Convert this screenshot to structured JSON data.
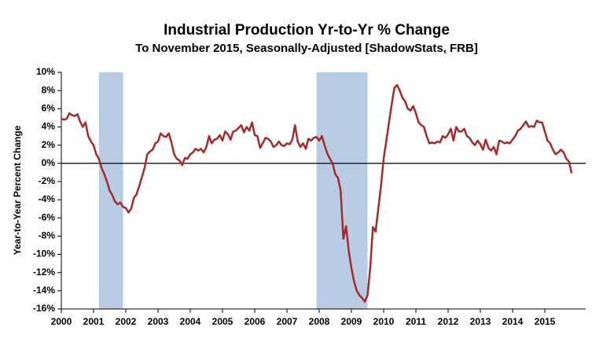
{
  "chart_data": {
    "type": "line",
    "title": "Industrial Production Yr-to-Yr %  Change",
    "subtitle": "To November 2015, Seasonally-Adjusted [ShadowStats, FRB]",
    "y_label": "Year-to-Year Percent Change",
    "categories": [
      "2000",
      null,
      null,
      null,
      null,
      null,
      null,
      null,
      null,
      null,
      null,
      null,
      "2001",
      null,
      null,
      null,
      null,
      null,
      null,
      null,
      null,
      null,
      null,
      null,
      "2002",
      null,
      null,
      null,
      null,
      null,
      null,
      null,
      null,
      null,
      null,
      null,
      "2003",
      null,
      null,
      null,
      null,
      null,
      null,
      null,
      null,
      null,
      null,
      null,
      "2004",
      null,
      null,
      null,
      null,
      null,
      null,
      null,
      null,
      null,
      null,
      null,
      "2005",
      null,
      null,
      null,
      null,
      null,
      null,
      null,
      null,
      null,
      null,
      null,
      "2006",
      null,
      null,
      null,
      null,
      null,
      null,
      null,
      null,
      null,
      null,
      null,
      "2007",
      null,
      null,
      null,
      null,
      null,
      null,
      null,
      null,
      null,
      null,
      null,
      "2008",
      null,
      null,
      null,
      null,
      null,
      null,
      null,
      null,
      null,
      null,
      null,
      "2009",
      null,
      null,
      null,
      null,
      null,
      null,
      null,
      null,
      null,
      null,
      null,
      "2010",
      null,
      null,
      null,
      null,
      null,
      null,
      null,
      null,
      null,
      null,
      null,
      "2011",
      null,
      null,
      null,
      null,
      null,
      null,
      null,
      null,
      null,
      null,
      null,
      "2012",
      null,
      null,
      null,
      null,
      null,
      null,
      null,
      null,
      null,
      null,
      null,
      "2013",
      null,
      null,
      null,
      null,
      null,
      null,
      null,
      null,
      null,
      null,
      null,
      "2014",
      null,
      null,
      null,
      null,
      null,
      null,
      null,
      null,
      null,
      null,
      null,
      "2015",
      null,
      null,
      null,
      null,
      null,
      null,
      null,
      null,
      null,
      null
    ],
    "series": [
      {
        "name": "Industrial Production",
        "color": "#a52a2a",
        "values": [
          4.9,
          4.8,
          4.9,
          5.5,
          5.3,
          5.2,
          5.4,
          4.6,
          4.0,
          4.5,
          3.0,
          2.4,
          2.0,
          1.0,
          0.5,
          -0.5,
          -1.2,
          -2.0,
          -3.0,
          -3.5,
          -4.2,
          -4.5,
          -4.3,
          -4.8,
          -4.9,
          -5.4,
          -5.0,
          -3.8,
          -3.4,
          -2.5,
          -1.5,
          -0.5,
          1.0,
          1.3,
          1.5,
          2.2,
          2.4,
          3.3,
          3.0,
          2.9,
          3.3,
          2.3,
          1.0,
          0.5,
          0.3,
          -0.2,
          0.6,
          0.5,
          1.0,
          1.2,
          1.6,
          1.4,
          1.6,
          1.2,
          1.8,
          3.0,
          2.2,
          2.6,
          2.7,
          3.1,
          2.5,
          3.5,
          3.2,
          2.6,
          3.5,
          3.6,
          3.9,
          4.2,
          3.4,
          4.0,
          3.6,
          4.5,
          3.1,
          3.0,
          1.7,
          2.2,
          2.8,
          2.7,
          2.4,
          1.8,
          2.0,
          2.4,
          2.0,
          1.9,
          2.2,
          2.1,
          2.6,
          4.2,
          2.4,
          1.8,
          2.2,
          1.6,
          2.7,
          2.5,
          2.8,
          2.9,
          2.5,
          3.0,
          2.0,
          1.1,
          0.5,
          0.0,
          -1.2,
          -1.6,
          -3.0,
          -8.3,
          -6.9,
          -9.6,
          -11.5,
          -13.0,
          -14.0,
          -14.5,
          -14.8,
          -15.2,
          -14.5,
          -11.5,
          -7.0,
          -7.5,
          -5.0,
          -2.5,
          0.5,
          2.5,
          4.5,
          6.5,
          8.3,
          8.6,
          8.0,
          7.2,
          6.8,
          6.0,
          5.8,
          6.3,
          5.5,
          4.5,
          4.2,
          4.0,
          3.0,
          2.2,
          2.3,
          2.2,
          2.4,
          2.3,
          3.0,
          2.8,
          3.2,
          3.8,
          2.5,
          4.0,
          3.5,
          3.5,
          3.8,
          3.0,
          2.8,
          2.3,
          2.0,
          2.5,
          2.1,
          1.5,
          2.6,
          1.7,
          1.4,
          1.8,
          1.0,
          2.5,
          2.4,
          2.2,
          2.3,
          2.2,
          2.6,
          3.0,
          3.6,
          3.8,
          4.2,
          4.6,
          4.0,
          4.1,
          4.0,
          4.7,
          4.5,
          4.5,
          3.5,
          2.5,
          2.2,
          1.5,
          1.0,
          1.2,
          1.5,
          1.2,
          0.5,
          0.2,
          -1.1
        ]
      }
    ],
    "shaded_regions": [
      {
        "start": 14,
        "end": 23,
        "color": "#b8cce4"
      },
      {
        "start": 95,
        "end": 114,
        "color": "#b8cce4"
      }
    ],
    "ylim": [
      -16,
      10
    ],
    "yticks": [
      {
        "value": -16,
        "label": "-16%"
      },
      {
        "value": -14,
        "label": "-14%"
      },
      {
        "value": -12,
        "label": "-12%"
      },
      {
        "value": -10,
        "label": "-10%"
      },
      {
        "value": -8,
        "label": "-8%"
      },
      {
        "value": -6,
        "label": "-6%"
      },
      {
        "value": -4,
        "label": "-4%"
      },
      {
        "value": -2,
        "label": "-2%"
      },
      {
        "value": 0,
        "label": "0%"
      },
      {
        "value": 2,
        "label": "2%"
      },
      {
        "value": 4,
        "label": "4%"
      },
      {
        "value": 6,
        "label": "6%"
      },
      {
        "value": 8,
        "label": "8%"
      },
      {
        "value": 10,
        "label": "10%"
      }
    ],
    "zero_line": true
  }
}
